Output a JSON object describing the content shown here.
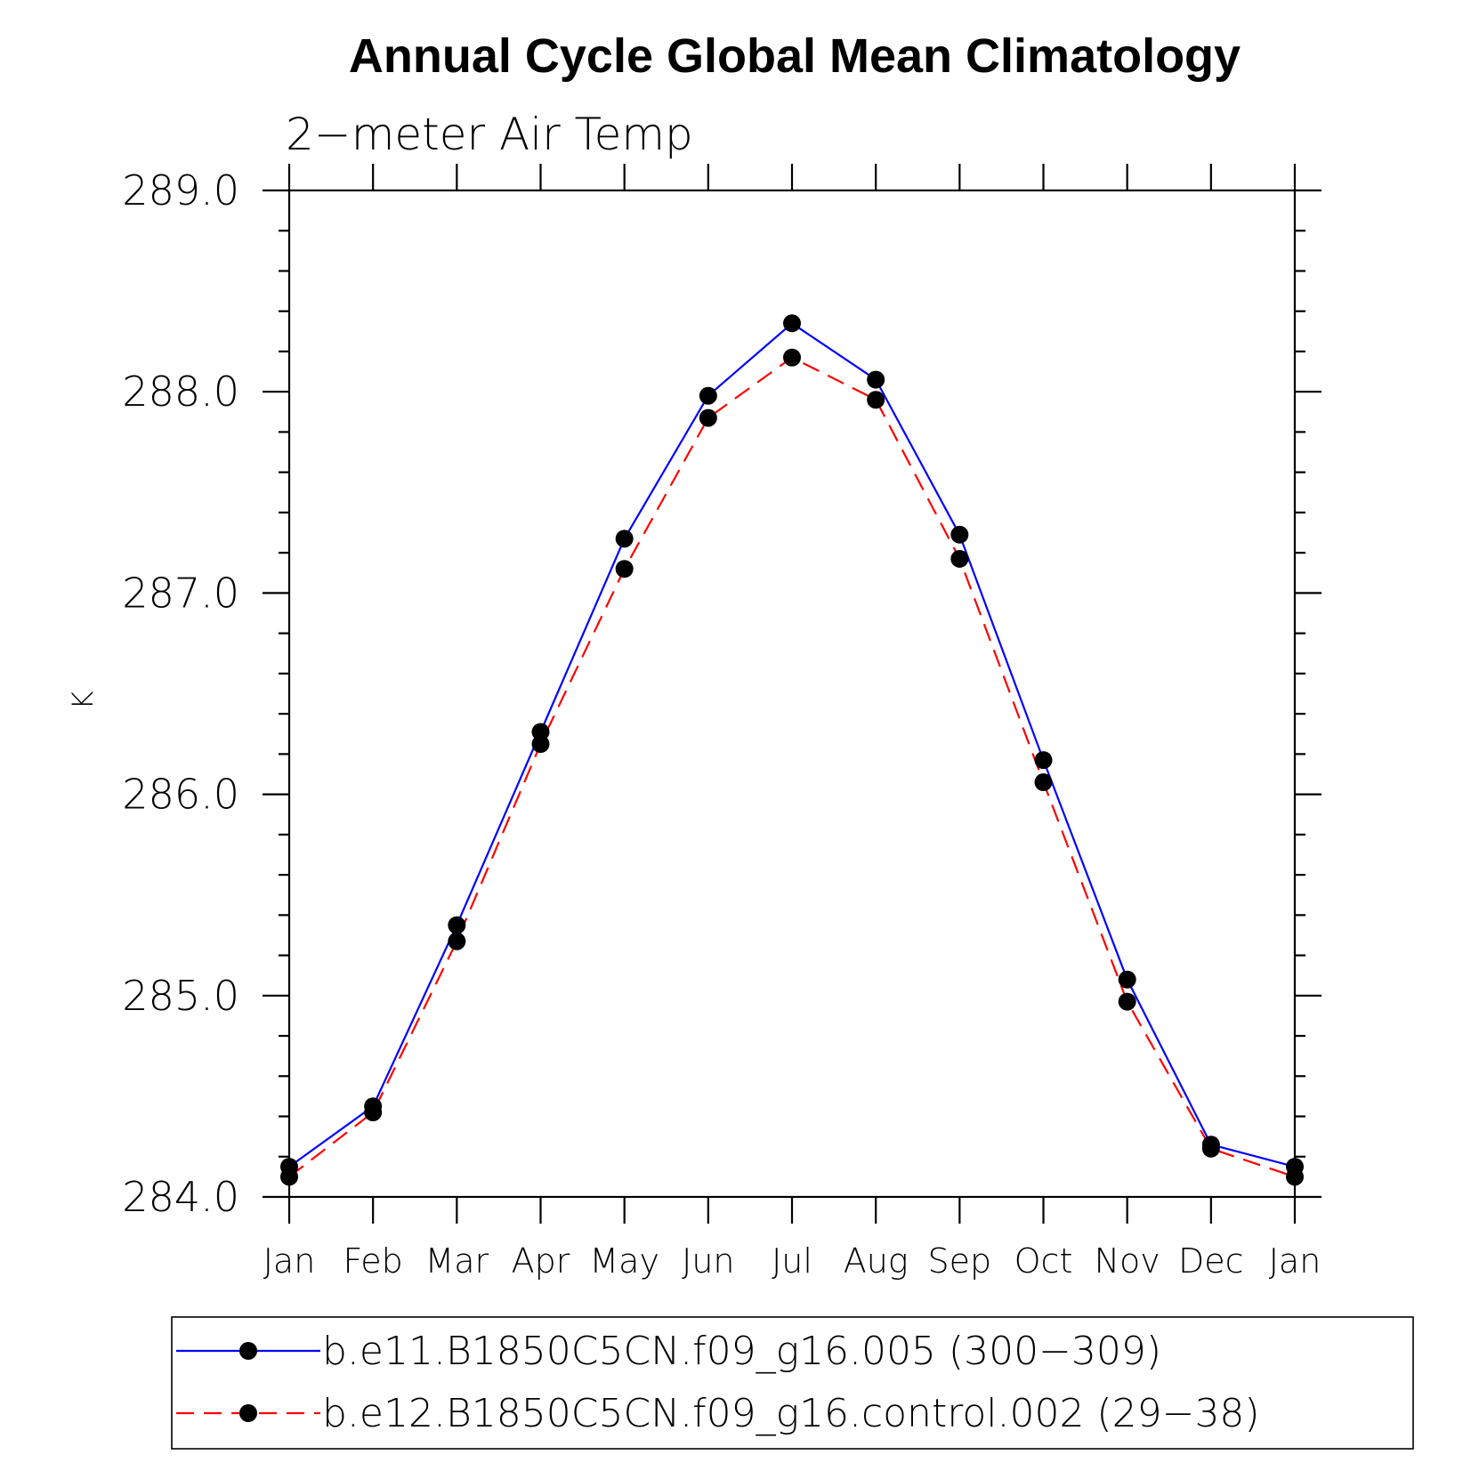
{
  "chart_data": {
    "type": "line",
    "title": "Annual Cycle Global Mean Climatology",
    "subtitle": "2−meter Air Temp",
    "ylabel": "K",
    "xlabel": "",
    "ylim": [
      284.0,
      289.0
    ],
    "yticks": [
      "284.0",
      "285.0",
      "286.0",
      "287.0",
      "288.0",
      "289.0"
    ],
    "categories": [
      "Jan",
      "Feb",
      "Mar",
      "Apr",
      "May",
      "Jun",
      "Jul",
      "Aug",
      "Sep",
      "Oct",
      "Nov",
      "Dec",
      "Jan"
    ],
    "legend_position": "bottom",
    "series": [
      {
        "name": "b.e11.B1850C5CN.f09_g16.005 (300−309)",
        "color": "#0000ff",
        "dash": "solid",
        "marker": "filled-circle",
        "values": [
          284.15,
          284.45,
          285.35,
          286.31,
          287.27,
          287.98,
          288.34,
          288.06,
          287.29,
          286.17,
          285.08,
          284.26,
          284.15
        ]
      },
      {
        "name": "b.e12.B1850C5CN.f09_g16.control.002 (29−38)",
        "color": "#ff0000",
        "dash": "dashed",
        "marker": "filled-circle",
        "values": [
          284.1,
          284.42,
          285.27,
          286.25,
          287.12,
          287.87,
          288.17,
          287.96,
          287.17,
          286.06,
          284.97,
          284.24,
          284.1
        ]
      }
    ]
  }
}
